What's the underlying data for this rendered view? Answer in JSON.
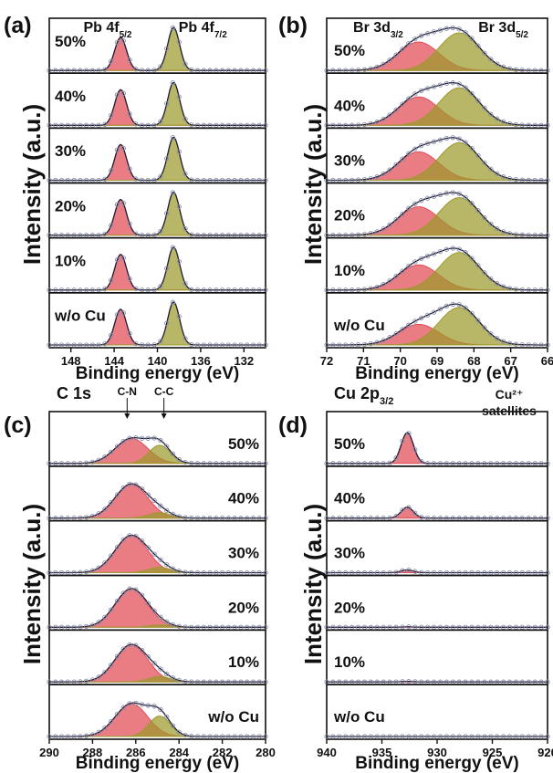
{
  "chart_data": [
    {
      "panel": "(a)",
      "type": "line",
      "xlabel": "Binding energy (eV)",
      "ylabel": "Intensity (a.u.)",
      "xlim": [
        150,
        130
      ],
      "x_reversed": true,
      "xticks": [
        148,
        144,
        140,
        136,
        132
      ],
      "peak_labels": [
        {
          "base": "Pb 4f",
          "sub": "5/2",
          "x": 144.6
        },
        {
          "base": "Pb 4f",
          "sub": "7/2",
          "x": 135.8
        }
      ],
      "samples": [
        "50%",
        "40%",
        "30%",
        "20%",
        "10%",
        "w/o Cu"
      ],
      "series": [
        {
          "name": "Pb 4f5/2",
          "center": 143.4,
          "width": 0.55,
          "color": "#e24a55",
          "heights": [
            0.72,
            0.78,
            0.78,
            0.78,
            0.78,
            0.78
          ]
        },
        {
          "name": "Pb 4f7/2",
          "center": 138.5,
          "width": 0.55,
          "color": "#9c9a2c",
          "heights": [
            0.94,
            0.94,
            0.94,
            0.94,
            0.94,
            0.94
          ]
        }
      ]
    },
    {
      "panel": "(b)",
      "type": "line",
      "xlabel": "Binding energy (eV)",
      "ylabel": "Intensity (a.u.)",
      "xlim": [
        72,
        66
      ],
      "x_reversed": true,
      "xticks": [
        72,
        71,
        70,
        69,
        68,
        67,
        66
      ],
      "peak_labels": [
        {
          "base": "Br 3d",
          "sub": "3/2",
          "x": 70.6
        },
        {
          "base": "Br 3d",
          "sub": "5/2",
          "x": 67.2
        }
      ],
      "samples": [
        "50%",
        "40%",
        "30%",
        "20%",
        "10%",
        "w/o Cu"
      ],
      "series": [
        {
          "name": "Br 3d3/2",
          "center": 69.5,
          "width": 0.55,
          "color": "#e24a55",
          "heights": [
            0.62,
            0.62,
            0.62,
            0.62,
            0.55,
            0.45
          ]
        },
        {
          "name": "Br 3d5/2",
          "center": 68.4,
          "width": 0.55,
          "color": "#9c9a2c",
          "heights": [
            0.82,
            0.82,
            0.82,
            0.82,
            0.82,
            0.82
          ]
        }
      ]
    },
    {
      "panel": "(c)",
      "type": "line",
      "xlabel": "Binding energy (eV)",
      "ylabel": "Intensity (a.u.)",
      "xlim": [
        290,
        280
      ],
      "x_reversed": true,
      "xticks": [
        290,
        288,
        286,
        284,
        282,
        280
      ],
      "title": "C 1s",
      "peak_labels": [
        {
          "base": "C-N",
          "sub": "",
          "x": 286.4
        },
        {
          "base": "C-C",
          "sub": "",
          "x": 284.7
        }
      ],
      "samples": [
        "50%",
        "40%",
        "30%",
        "20%",
        "10%",
        "w/o Cu"
      ],
      "series": [
        {
          "name": "C-N",
          "center": 286.2,
          "width": 0.75,
          "color": "#e24a55",
          "heights": [
            0.55,
            0.75,
            0.82,
            0.85,
            0.82,
            0.72
          ]
        },
        {
          "name": "C-C",
          "center": 284.9,
          "width": 0.5,
          "color": "#9c9a2c",
          "heights": [
            0.4,
            0.12,
            0.12,
            0.05,
            0.12,
            0.45
          ]
        }
      ]
    },
    {
      "panel": "(d)",
      "type": "line",
      "xlabel": "Binding energy (eV)",
      "ylabel": "Intensity (a.u.)",
      "xlim": [
        940,
        920
      ],
      "x_reversed": true,
      "xticks": [
        940,
        935,
        930,
        925,
        920
      ],
      "title_base": "Cu 2p",
      "title_sub": "3/2",
      "annotation": [
        "Cu²⁺",
        "satellites"
      ],
      "samples": [
        "50%",
        "40%",
        "30%",
        "20%",
        "10%",
        "w/o Cu"
      ],
      "series": [
        {
          "name": "Cu 2p3/2",
          "center": 932.7,
          "width": 0.55,
          "color": "#e24a55",
          "heights": [
            0.68,
            0.24,
            0.06,
            0.01,
            0.01,
            0.0
          ]
        }
      ]
    }
  ]
}
